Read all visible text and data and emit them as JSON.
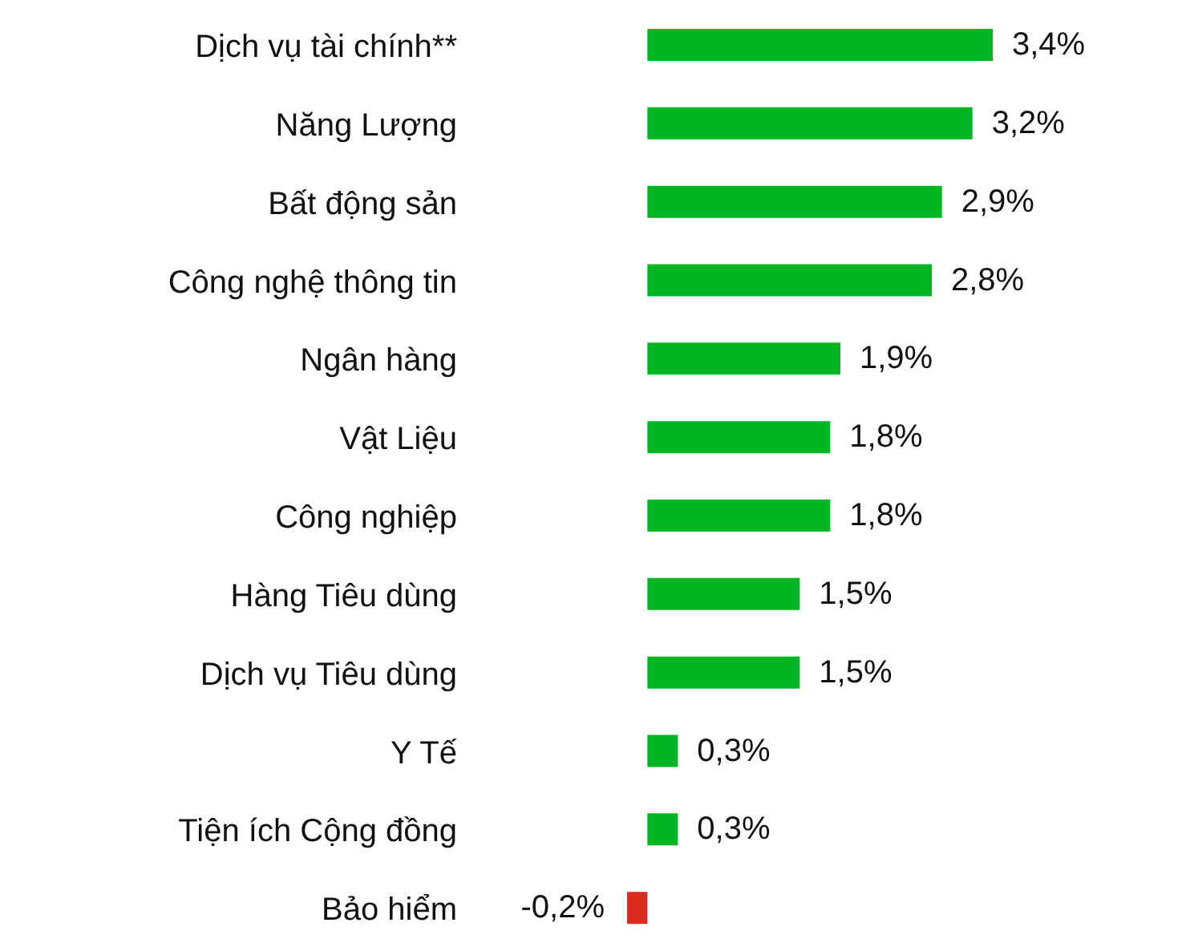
{
  "chart_data": {
    "type": "bar",
    "orientation": "horizontal",
    "categories": [
      "Dịch vụ tài chính**",
      "Năng Lượng",
      "Bất động sản",
      "Công nghệ thông tin",
      "Ngân hàng",
      "Vật Liệu",
      "Công nghiệp",
      "Hàng Tiêu dùng",
      "Dịch vụ Tiêu dùng",
      "Y Tế",
      "Tiện ích Cộng đồng",
      "Bảo hiểm"
    ],
    "values": [
      3.4,
      3.2,
      2.9,
      2.8,
      1.9,
      1.8,
      1.8,
      1.5,
      1.5,
      0.3,
      0.3,
      -0.2
    ],
    "colors": [
      "#00b624",
      "#00b624",
      "#00b624",
      "#00b624",
      "#00b624",
      "#00b624",
      "#00b624",
      "#00b624",
      "#00b624",
      "#00b624",
      "#00b624",
      "#dc2c20"
    ],
    "value_labels": [
      "3,4%",
      "3,2%",
      "2,9%",
      "2,8%",
      "1,9%",
      "1,8%",
      "1,8%",
      "1,5%",
      "1,5%",
      "0,3%",
      "0,3%",
      "-0,2%"
    ]
  }
}
